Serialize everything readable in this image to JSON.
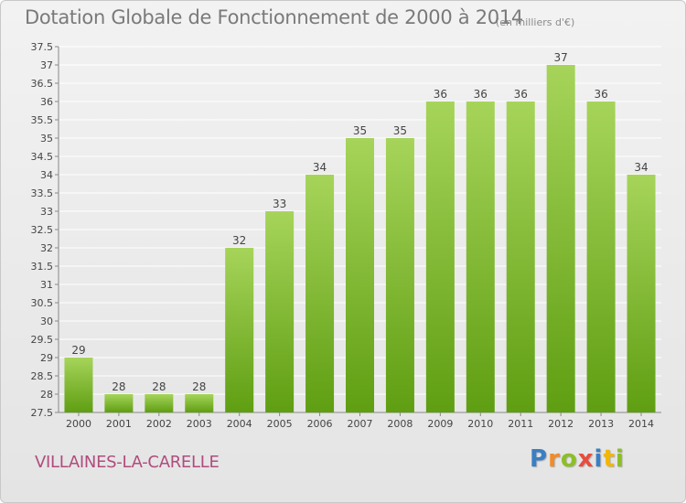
{
  "header": {
    "title": "Dotation Globale de Fonctionnement de 2000 à 2014",
    "unit_note": "(en milliers d'€)"
  },
  "footer": {
    "town": "VILLAINES-LA-CARELLE",
    "logo_text": "Proxiti",
    "logo_letters": [
      {
        "ch": "P",
        "color": "#3a7fc4"
      },
      {
        "ch": "r",
        "color": "#f28c28"
      },
      {
        "ch": "o",
        "color": "#8cbf26"
      },
      {
        "ch": "x",
        "color": "#e84c3d"
      },
      {
        "ch": "i",
        "color": "#3a7fc4"
      },
      {
        "ch": "t",
        "color": "#f2b705"
      },
      {
        "ch": "i",
        "color": "#8cbf26"
      }
    ]
  },
  "colors": {
    "bar_top": "#a6d45a",
    "bar_bottom": "#5f9e12",
    "town": "#b04c7e",
    "grid": "#ffffff"
  },
  "chart_data": {
    "type": "bar",
    "title": "Dotation Globale de Fonctionnement de 2000 à 2014",
    "subtitle": "(en milliers d'€)",
    "xlabel": "",
    "ylabel": "",
    "ylim": [
      27.5,
      37.5
    ],
    "ytick_step": 0.5,
    "grid": true,
    "legend": "none",
    "categories": [
      "2000",
      "2001",
      "2002",
      "2003",
      "2004",
      "2005",
      "2006",
      "2007",
      "2008",
      "2009",
      "2010",
      "2011",
      "2012",
      "2013",
      "2014"
    ],
    "values": [
      29,
      28,
      28,
      28,
      32,
      33,
      34,
      35,
      35,
      36,
      36,
      36,
      37,
      36,
      34
    ],
    "yticks": [
      "27.5",
      "28",
      "28.5",
      "29",
      "29.5",
      "30",
      "30.5",
      "31",
      "31.5",
      "32",
      "32.5",
      "33",
      "33.5",
      "34",
      "34.5",
      "35",
      "35.5",
      "36",
      "36.5",
      "37",
      "37.5"
    ]
  }
}
